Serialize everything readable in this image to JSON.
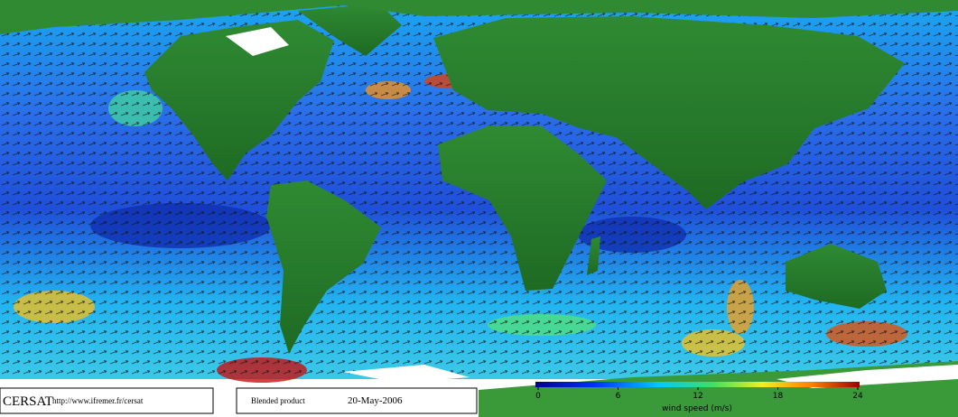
{
  "footer": {
    "logo": "CERSAT",
    "url": "http://www.ifremer.fr/cersat",
    "product": "Blended product",
    "date": "20-May-2006"
  },
  "colorbar": {
    "label": "wind speed (m/s)",
    "lim": [
      0,
      24
    ],
    "ticks": [
      0,
      6,
      12,
      18,
      24
    ]
  }
}
